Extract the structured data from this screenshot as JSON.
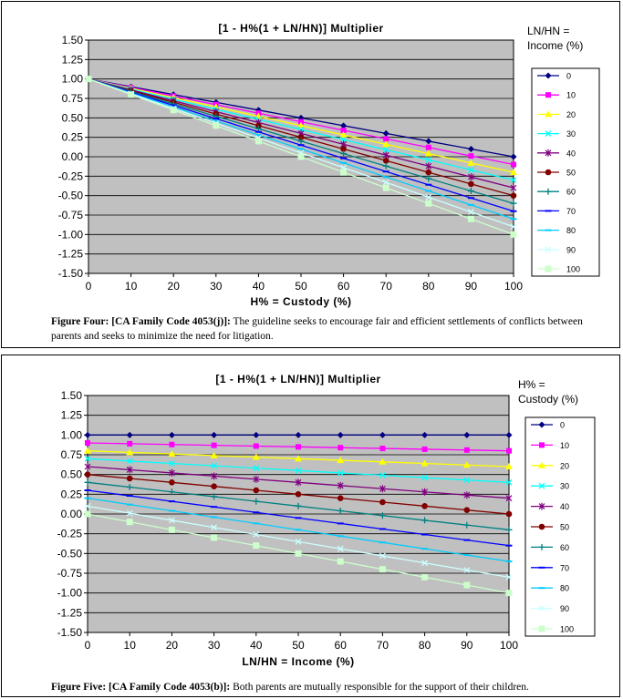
{
  "figures": [
    {
      "caption_label": "Figure Four: [CA Family Code 4053(j)]:",
      "caption_text": " The guideline seeks to encourage fair and efficient settlements of conflicts between parents and seeks to minimize the need for litigation."
    },
    {
      "caption_label": "Figure Five: [CA Family Code 4053(b)]:",
      "caption_text": " Both parents are mutually responsible for the support of their children."
    }
  ],
  "colors": {
    "plot_bg": "#c0c0c0",
    "series": [
      "#000080",
      "#ff00ff",
      "#ffff00",
      "#00ffff",
      "#800080",
      "#800000",
      "#008080",
      "#0000ff",
      "#00ccff",
      "#ccffff",
      "#ccffcc"
    ]
  },
  "chart_data": [
    {
      "type": "line",
      "title": "[1 - H%(1 + LN/HN)] Multiplier",
      "xlabel": "H% = Custody (%)",
      "ylabel": "",
      "legend_title": [
        "LN/HN =",
        "Income (%)"
      ],
      "legend_position": "right",
      "grid": true,
      "x": [
        0,
        10,
        20,
        30,
        40,
        50,
        60,
        70,
        80,
        90,
        100
      ],
      "xlim": [
        0,
        100
      ],
      "ylim": [
        -1.5,
        1.5
      ],
      "yticks": [
        "1.50",
        "1.25",
        "1.00",
        "0.75",
        "0.50",
        "0.25",
        "0.00",
        "-0.25",
        "-0.50",
        "-0.75",
        "-1.00",
        "-1.25",
        "-1.50"
      ],
      "xticks": [
        "0",
        "10",
        "20",
        "30",
        "40",
        "50",
        "60",
        "70",
        "80",
        "90",
        "100"
      ],
      "series": [
        {
          "name": "0",
          "values": [
            1,
            0.9,
            0.8,
            0.7,
            0.6,
            0.5,
            0.4,
            0.3,
            0.2,
            0.1,
            0
          ]
        },
        {
          "name": "10",
          "values": [
            1,
            0.89,
            0.78,
            0.67,
            0.56,
            0.45,
            0.34,
            0.23,
            0.12,
            0.01,
            -0.1
          ]
        },
        {
          "name": "20",
          "values": [
            1,
            0.88,
            0.76,
            0.64,
            0.52,
            0.4,
            0.28,
            0.16,
            0.04,
            -0.08,
            -0.2
          ]
        },
        {
          "name": "30",
          "values": [
            1,
            0.87,
            0.74,
            0.61,
            0.48,
            0.35,
            0.22,
            0.09,
            -0.04,
            -0.17,
            -0.3
          ]
        },
        {
          "name": "40",
          "values": [
            1,
            0.86,
            0.72,
            0.58,
            0.44,
            0.3,
            0.16,
            0.02,
            -0.12,
            -0.26,
            -0.4
          ]
        },
        {
          "name": "50",
          "values": [
            1,
            0.85,
            0.7,
            0.55,
            0.4,
            0.25,
            0.1,
            -0.05,
            -0.2,
            -0.35,
            -0.5
          ]
        },
        {
          "name": "60",
          "values": [
            1,
            0.84,
            0.68,
            0.52,
            0.36,
            0.2,
            0.04,
            -0.12,
            -0.28,
            -0.44,
            -0.6
          ]
        },
        {
          "name": "70",
          "values": [
            1,
            0.83,
            0.66,
            0.49,
            0.32,
            0.15,
            -0.02,
            -0.19,
            -0.36,
            -0.53,
            -0.7
          ]
        },
        {
          "name": "80",
          "values": [
            1,
            0.82,
            0.64,
            0.46,
            0.28,
            0.1,
            -0.08,
            -0.26,
            -0.44,
            -0.62,
            -0.8
          ]
        },
        {
          "name": "90",
          "values": [
            1,
            0.81,
            0.62,
            0.43,
            0.24,
            0.05,
            -0.14,
            -0.33,
            -0.52,
            -0.71,
            -0.9
          ]
        },
        {
          "name": "100",
          "values": [
            1,
            0.8,
            0.6,
            0.4,
            0.2,
            0,
            -0.2,
            -0.4,
            -0.6,
            -0.8,
            -1
          ]
        }
      ]
    },
    {
      "type": "line",
      "title": "[1 - H%(1 + LN/HN)] Multiplier",
      "xlabel": "LN/HN = Income (%)",
      "ylabel": "",
      "legend_title": [
        "H% =",
        "Custody (%)"
      ],
      "legend_position": "right",
      "grid": true,
      "x": [
        0,
        10,
        20,
        30,
        40,
        50,
        60,
        70,
        80,
        90,
        100
      ],
      "xlim": [
        0,
        100
      ],
      "ylim": [
        -1.5,
        1.5
      ],
      "yticks": [
        "1.50",
        "1.25",
        "1.00",
        "0.75",
        "0.50",
        "0.25",
        "0.00",
        "-0.25",
        "-0.50",
        "-0.75",
        "-1.00",
        "-1.25",
        "-1.50"
      ],
      "xticks": [
        "0",
        "10",
        "20",
        "30",
        "40",
        "50",
        "60",
        "70",
        "80",
        "90",
        "100"
      ],
      "series": [
        {
          "name": "0",
          "values": [
            1,
            1,
            1,
            1,
            1,
            1,
            1,
            1,
            1,
            1,
            1
          ]
        },
        {
          "name": "10",
          "values": [
            0.9,
            0.89,
            0.88,
            0.87,
            0.86,
            0.85,
            0.84,
            0.83,
            0.82,
            0.81,
            0.8
          ]
        },
        {
          "name": "20",
          "values": [
            0.8,
            0.78,
            0.76,
            0.74,
            0.72,
            0.7,
            0.68,
            0.66,
            0.64,
            0.62,
            0.6
          ]
        },
        {
          "name": "30",
          "values": [
            0.7,
            0.67,
            0.64,
            0.61,
            0.58,
            0.55,
            0.52,
            0.49,
            0.46,
            0.43,
            0.4
          ]
        },
        {
          "name": "40",
          "values": [
            0.6,
            0.56,
            0.52,
            0.48,
            0.44,
            0.4,
            0.36,
            0.32,
            0.28,
            0.24,
            0.2
          ]
        },
        {
          "name": "50",
          "values": [
            0.5,
            0.45,
            0.4,
            0.35,
            0.3,
            0.25,
            0.2,
            0.15,
            0.1,
            0.05,
            0
          ]
        },
        {
          "name": "60",
          "values": [
            0.4,
            0.34,
            0.28,
            0.22,
            0.16,
            0.1,
            0.04,
            -0.02,
            -0.08,
            -0.14,
            -0.2
          ]
        },
        {
          "name": "70",
          "values": [
            0.3,
            0.23,
            0.16,
            0.09,
            0.02,
            -0.05,
            -0.12,
            -0.19,
            -0.26,
            -0.33,
            -0.4
          ]
        },
        {
          "name": "80",
          "values": [
            0.2,
            0.12,
            0.04,
            -0.04,
            -0.12,
            -0.2,
            -0.28,
            -0.36,
            -0.44,
            -0.52,
            -0.6
          ]
        },
        {
          "name": "90",
          "values": [
            0.1,
            0.01,
            -0.08,
            -0.17,
            -0.26,
            -0.35,
            -0.44,
            -0.53,
            -0.62,
            -0.71,
            -0.8
          ]
        },
        {
          "name": "100",
          "values": [
            0,
            -0.1,
            -0.2,
            -0.3,
            -0.4,
            -0.5,
            -0.6,
            -0.7,
            -0.8,
            -0.9,
            -1
          ]
        }
      ]
    }
  ]
}
